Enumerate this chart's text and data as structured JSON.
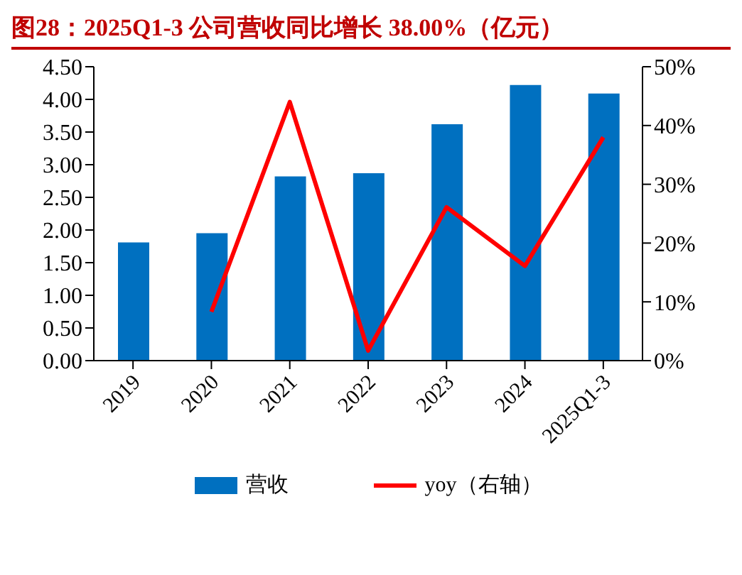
{
  "chart_data": {
    "type": "bar",
    "title": "图28：2025Q1-3 公司营收同比增长 38.00%（亿元）",
    "categories": [
      "2019",
      "2020",
      "2021",
      "2022",
      "2023",
      "2024",
      "2025Q1-3"
    ],
    "series": [
      {
        "name": "营收",
        "color": "#0070c0",
        "values": [
          1.81,
          1.95,
          2.82,
          2.87,
          3.62,
          4.22,
          4.09
        ]
      },
      {
        "name": "yoy（右轴）",
        "type": "line",
        "axis": "y2",
        "color": "#ff0000",
        "marker": "none",
        "values": [
          null,
          8.3,
          44.0,
          1.7,
          26.1,
          16.1,
          38.0
        ]
      }
    ],
    "ylim": [
      0,
      4.5
    ],
    "yticks": [
      {
        "value": 0,
        "label": "0.00"
      },
      {
        "value": 0.5,
        "label": "0.50"
      },
      {
        "value": 1,
        "label": "1.00"
      },
      {
        "value": 1.5,
        "label": "1.50"
      },
      {
        "value": 2,
        "label": "2.00"
      },
      {
        "value": 2.5,
        "label": "2.50"
      },
      {
        "value": 3,
        "label": "3.00"
      },
      {
        "value": 3.5,
        "label": "3.50"
      },
      {
        "value": 4,
        "label": "4.00"
      },
      {
        "value": 4.5,
        "label": "4.50"
      }
    ],
    "y2lim": [
      0,
      50
    ],
    "y2ticks": [
      {
        "value": 0,
        "label": "0%"
      },
      {
        "value": 10,
        "label": "10%"
      },
      {
        "value": 20,
        "label": "20%"
      },
      {
        "value": 30,
        "label": "30%"
      },
      {
        "value": 40,
        "label": "40%"
      },
      {
        "value": 50,
        "label": "50%"
      }
    ],
    "grid": false,
    "legend": "bottom"
  }
}
